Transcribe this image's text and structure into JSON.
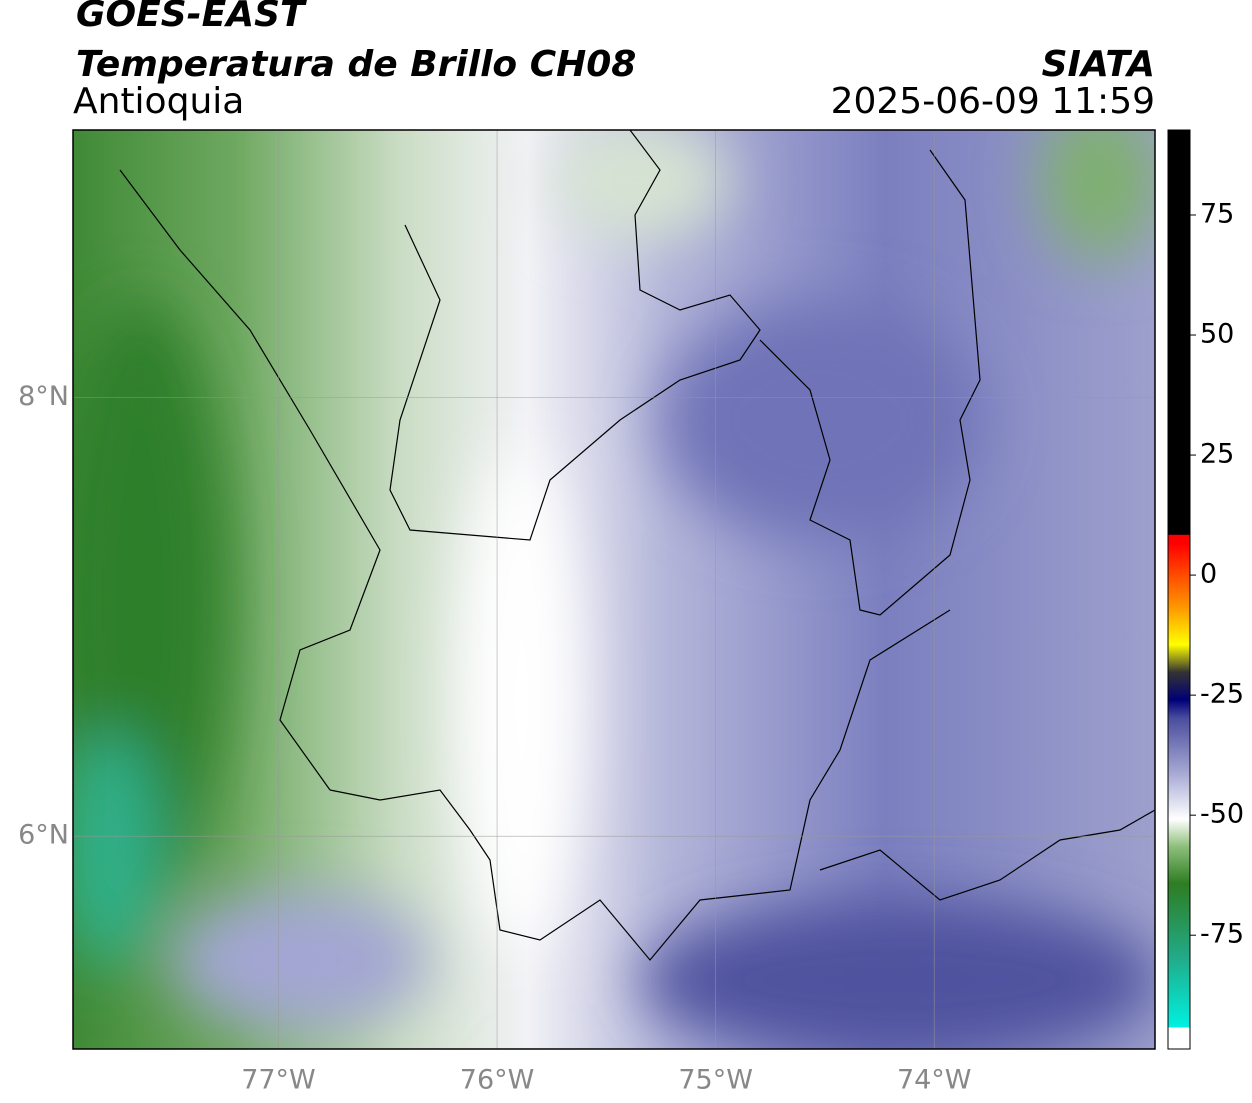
{
  "header": {
    "title": "GOES-EAST",
    "subtitle": "Temperatura de Brillo CH08",
    "region": "Antioquia",
    "source": "SIATA",
    "timestamp": "2025-06-09 11:59"
  },
  "map": {
    "xlim": [
      -77.94,
      -72.99
    ],
    "ylim": [
      5.03,
      9.22
    ],
    "lon_ticks": [
      {
        "value": -77,
        "label": "77°W"
      },
      {
        "value": -76,
        "label": "76°W"
      },
      {
        "value": -75,
        "label": "75°W"
      },
      {
        "value": -74,
        "label": "74°W"
      }
    ],
    "lat_ticks": [
      {
        "value": 8,
        "label": "8°N"
      },
      {
        "value": 6,
        "label": "6°N"
      }
    ]
  },
  "colorbar": {
    "lim": [
      -98.7,
      92.7
    ],
    "ticks": [
      75,
      50,
      25,
      0,
      -25,
      -50,
      -75
    ]
  }
}
